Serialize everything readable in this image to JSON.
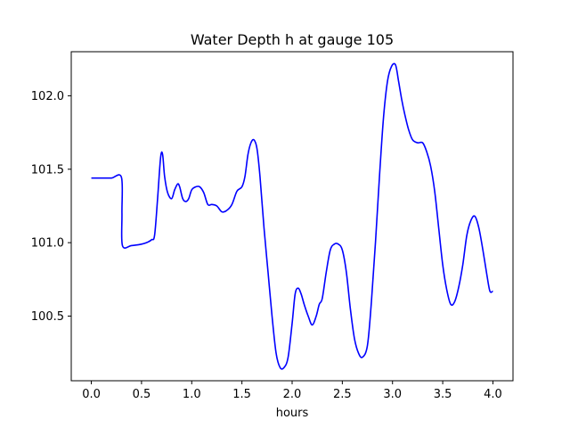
{
  "chart_data": {
    "type": "line",
    "title": "Water Depth h at gauge 105",
    "xlabel": "hours",
    "ylabel": "",
    "xlim": [
      -0.2,
      4.2
    ],
    "ylim": [
      100.06,
      102.3
    ],
    "xticks": [
      0.0,
      0.5,
      1.0,
      1.5,
      2.0,
      2.5,
      3.0,
      3.5,
      4.0
    ],
    "xtick_labels": [
      "0.0",
      "0.5",
      "1.0",
      "1.5",
      "2.0",
      "2.5",
      "3.0",
      "3.5",
      "4.0"
    ],
    "yticks": [
      100.5,
      101.0,
      101.5,
      102.0
    ],
    "ytick_labels": [
      "100.5",
      "101.0",
      "101.5",
      "102.0"
    ],
    "grid": false,
    "series": [
      {
        "color": "#0000ff",
        "x": [
          0.0,
          0.1,
          0.2,
          0.3,
          0.305,
          0.31,
          0.4,
          0.5,
          0.55,
          0.6,
          0.63,
          0.66,
          0.69,
          0.71,
          0.73,
          0.76,
          0.8,
          0.83,
          0.86,
          0.88,
          0.91,
          0.94,
          0.97,
          1.0,
          1.04,
          1.08,
          1.12,
          1.16,
          1.2,
          1.25,
          1.3,
          1.35,
          1.4,
          1.45,
          1.5,
          1.53,
          1.56,
          1.59,
          1.62,
          1.65,
          1.68,
          1.72,
          1.76,
          1.8,
          1.84,
          1.88,
          1.92,
          1.96,
          2.0,
          2.03,
          2.06,
          2.09,
          2.12,
          2.16,
          2.2,
          2.24,
          2.27,
          2.3,
          2.34,
          2.38,
          2.42,
          2.46,
          2.5,
          2.54,
          2.58,
          2.62,
          2.66,
          2.7,
          2.75,
          2.79,
          2.83,
          2.87,
          2.91,
          2.95,
          2.99,
          3.03,
          3.06,
          3.09,
          3.12,
          3.16,
          3.2,
          3.25,
          3.3,
          3.34,
          3.38,
          3.42,
          3.46,
          3.5,
          3.54,
          3.58,
          3.62,
          3.66,
          3.7,
          3.74,
          3.78,
          3.82,
          3.86,
          3.9,
          3.94,
          3.97,
          4.0
        ],
        "y": [
          101.44,
          101.44,
          101.44,
          101.445,
          101.2,
          100.98,
          100.98,
          100.99,
          101.0,
          101.02,
          101.05,
          101.3,
          101.58,
          101.6,
          101.45,
          101.34,
          101.3,
          101.36,
          101.4,
          101.38,
          101.3,
          101.28,
          101.3,
          101.36,
          101.38,
          101.38,
          101.34,
          101.26,
          101.26,
          101.25,
          101.21,
          101.22,
          101.26,
          101.35,
          101.38,
          101.45,
          101.6,
          101.68,
          101.7,
          101.64,
          101.45,
          101.1,
          100.8,
          100.5,
          100.25,
          100.15,
          100.15,
          100.22,
          100.45,
          100.65,
          100.69,
          100.65,
          100.58,
          100.5,
          100.44,
          100.5,
          100.58,
          100.62,
          100.8,
          100.95,
          100.99,
          100.99,
          100.95,
          100.8,
          100.55,
          100.35,
          100.25,
          100.22,
          100.3,
          100.6,
          101.0,
          101.45,
          101.85,
          102.1,
          102.2,
          102.21,
          102.1,
          101.98,
          101.88,
          101.77,
          101.7,
          101.68,
          101.68,
          101.62,
          101.52,
          101.35,
          101.1,
          100.85,
          100.68,
          100.58,
          100.6,
          100.7,
          100.85,
          101.05,
          101.15,
          101.18,
          101.1,
          100.95,
          100.78,
          100.67,
          100.67
        ]
      }
    ]
  }
}
